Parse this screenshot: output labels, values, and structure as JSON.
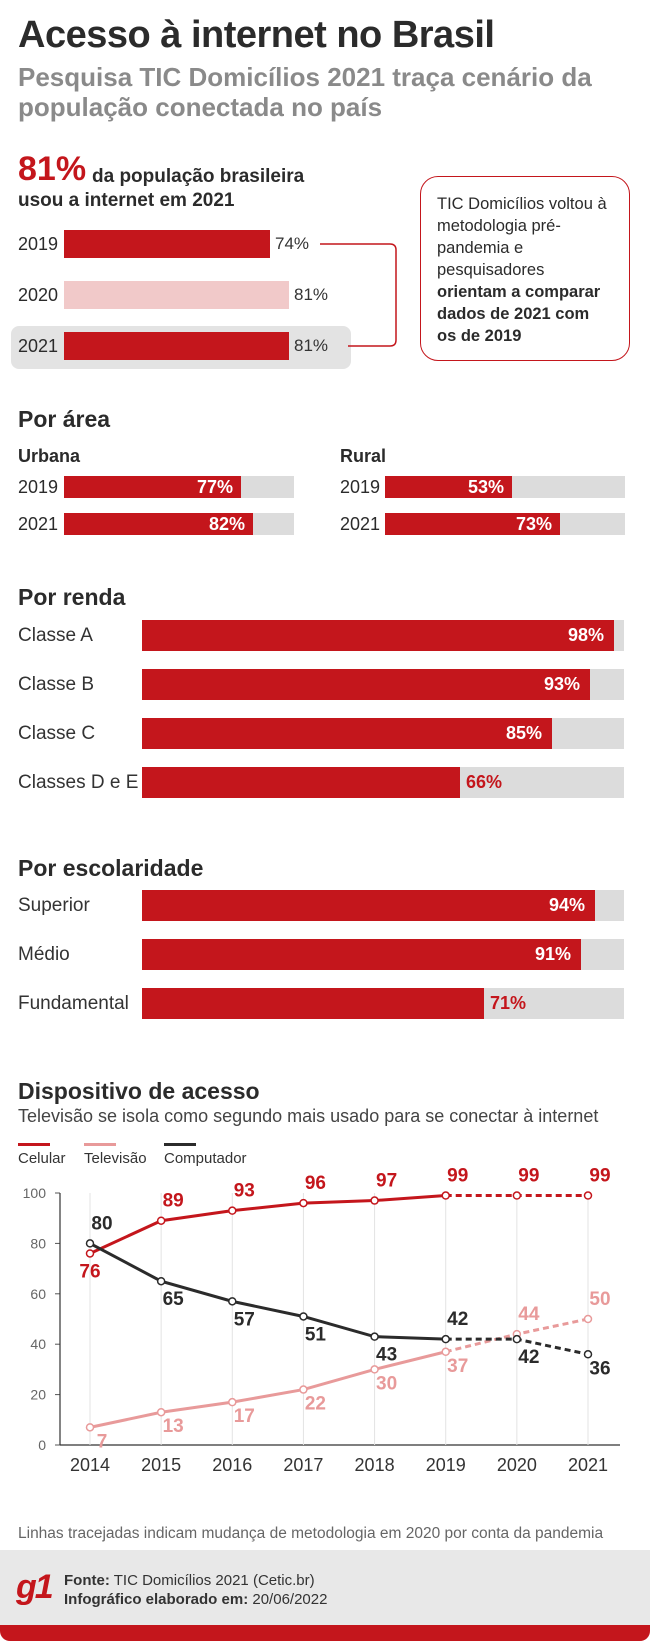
{
  "header": {
    "title": "Acesso à internet no Brasil",
    "subtitle": "Pesquisa TIC Domicílios 2021 traça cenário da população conectada no país"
  },
  "highlight": {
    "big_pct": "81%",
    "text_line1": "da população brasileira",
    "text_line2": "usou a internet em 2021",
    "rows": [
      {
        "year": "2019",
        "value": 74,
        "label": "74%"
      },
      {
        "year": "2020",
        "value": 81,
        "label": "81%"
      },
      {
        "year": "2021",
        "value": 81,
        "label": "81%"
      }
    ],
    "callout": {
      "normal": "TIC Domicílios voltou à metodologia pré-pandemia e pesquisadores",
      "bold": "orientam a comparar dados de 2021 com os de 2019"
    }
  },
  "por_area": {
    "title": "Por área",
    "urbana": {
      "label": "Urbana",
      "rows": [
        {
          "year": "2019",
          "value": 77,
          "label": "77%"
        },
        {
          "year": "2021",
          "value": 82,
          "label": "82%"
        }
      ]
    },
    "rural": {
      "label": "Rural",
      "rows": [
        {
          "year": "2019",
          "value": 53,
          "label": "53%"
        },
        {
          "year": "2021",
          "value": 73,
          "label": "73%"
        }
      ]
    }
  },
  "por_renda": {
    "title": "Por renda",
    "rows": [
      {
        "label": "Classe A",
        "value": 98,
        "pct": "98%"
      },
      {
        "label": "Classe B",
        "value": 93,
        "pct": "93%"
      },
      {
        "label": "Classe C",
        "value": 85,
        "pct": "85%"
      },
      {
        "label": "Classes D e E",
        "value": 66,
        "pct": "66%"
      }
    ]
  },
  "por_escolaridade": {
    "title": "Por escolaridade",
    "rows": [
      {
        "label": "Superior",
        "value": 94,
        "pct": "94%"
      },
      {
        "label": "Médio",
        "value": 91,
        "pct": "91%"
      },
      {
        "label": "Fundamental",
        "value": 71,
        "pct": "71%"
      }
    ]
  },
  "dispositivo": {
    "title": "Dispositivo de acesso",
    "subtitle": "Televisão se isola como segundo mais usado para se conectar à internet",
    "legend": [
      {
        "name": "Celular",
        "color": "#c4161c"
      },
      {
        "name": "Televisão",
        "color": "#e89a9a"
      },
      {
        "name": "Computador",
        "color": "#2b2b2b"
      }
    ],
    "note": "Linhas tracejadas indicam mudança de metodologia em 2020 por conta da pandemia"
  },
  "chart_data": {
    "type": "line",
    "x": [
      "2014",
      "2015",
      "2016",
      "2017",
      "2018",
      "2019",
      "2020",
      "2021"
    ],
    "ylim": [
      0,
      100
    ],
    "yticks": [
      0,
      20,
      40,
      60,
      80,
      100
    ],
    "dashed_from_index": 5,
    "series": [
      {
        "name": "Celular",
        "color": "#c4161c",
        "values": [
          76,
          89,
          93,
          96,
          97,
          99,
          99,
          99
        ]
      },
      {
        "name": "Televisão",
        "color": "#e89a9a",
        "values": [
          7,
          13,
          17,
          22,
          30,
          37,
          44,
          50
        ]
      },
      {
        "name": "Computador",
        "color": "#2b2b2b",
        "values": [
          80,
          65,
          57,
          51,
          43,
          42,
          42,
          36
        ]
      }
    ]
  },
  "footer": {
    "logo": "g1",
    "fonte_label": "Fonte:",
    "fonte_value": "TIC Domicílios 2021 (Cetic.br)",
    "info_label": "Infográfico elaborado em:",
    "info_value": "20/06/2022"
  }
}
